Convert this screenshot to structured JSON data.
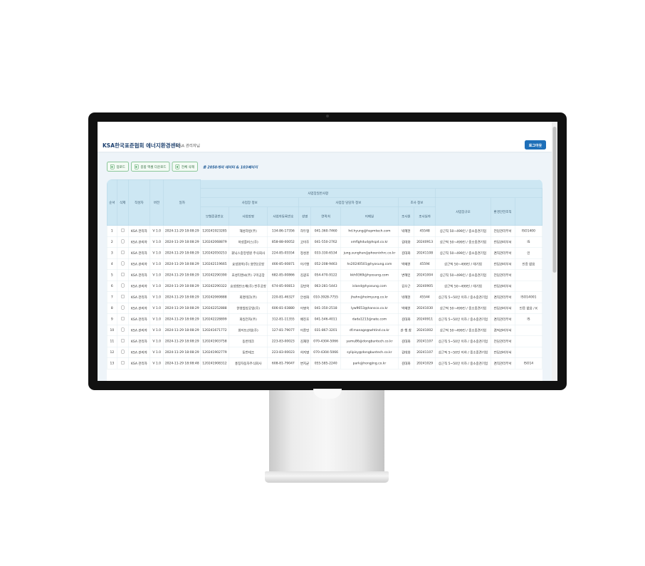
{
  "header": {
    "title": "KSA한국표준협회 에너지환경센터",
    "user": "KSA 관리자님",
    "logout_label": "로그아웃"
  },
  "toolbar": {
    "upload_label": "업로드",
    "excel_label": "종합 엑셀 다운로드",
    "delete_all_label": "전체 삭제",
    "total_text": "총 2050개의 데이터 & 103페이지"
  },
  "table": {
    "headers": {
      "no": "순서",
      "del": "삭제",
      "author": "작성자",
      "version": "버전",
      "date": "일자",
      "group_general": "사업장일반사항",
      "group_site": "사업장 정보",
      "group_contact": "사업장 담당자 정보",
      "group_survey": "조사 정보",
      "policy_no": "보험증권번호",
      "site_name": "사업장명",
      "biz_no": "사업자등록번호",
      "name": "성명",
      "phone": "연락처",
      "email": "이메일",
      "surveyor": "조사원",
      "survey_date": "조사일자",
      "scale": "사업장규모",
      "org": "환경안전조직"
    },
    "rows": [
      [
        "1",
        "KSA 관리자",
        "V 1.0",
        "2024-11-29 18:08:29",
        "120241923285",
        "해성하방(주)",
        "134-86-17356",
        "하두형",
        "041-360-7460",
        "hd.hyung@hspmtech.com",
        "박혜현",
        "45548",
        "상근직 50~499인 / 중소중견기업",
        "전담관리부서",
        "ISO1400"
      ],
      [
        "2",
        "KSA 관리자",
        "V 1.0",
        "2024-11-29 18:08:29",
        "120242068879",
        "하성플러스(주)",
        "858-88-00052",
        "고미주",
        "041-550-2762",
        "xmfighdud@hspd.co.kr",
        "김대화",
        "20240913",
        "상근직 50~499인 / 중소중견기업",
        "전담관리부서",
        "IS"
      ],
      [
        "3",
        "KSA 관리자",
        "V 1.0",
        "2024-11-29 18:08:29",
        "120242050253",
        "휘닉스중앙병원 주식회사",
        "224-85-05554",
        "정성훈",
        "033-330-6534",
        "jung.sunghun@phoenixhrc.co.kr",
        "김대화",
        "20241108",
        "상근직 50~499인 / 중소중견기업",
        "겸직관리부서",
        "인"
      ],
      [
        "4",
        "KSA 관리자",
        "V 1.0",
        "2024-11-29 18:08:29",
        "120242119665",
        "효성화학(주) 용연2공장",
        "466-85-00871",
        "이기형",
        "052-208-9463",
        "hs20240501@hyosung.com",
        "박혜현",
        "45594",
        "상근직 50~499인 / 대기업",
        "전담관리부서",
        "인증 없음"
      ],
      [
        "5",
        "KSA 관리자",
        "V 1.0",
        "2024-11-29 18:08:29",
        "120242290390",
        "효성티앤씨(주) 구미공장",
        "682-85-00866",
        "김광호",
        "054-470-9122",
        "kkh9369@hyosung.com",
        "변혜민",
        "20241004",
        "상근직 50~499인 / 중소중견기업",
        "전담관리부서",
        ""
      ],
      [
        "6",
        "KSA 관리자",
        "V 1.0",
        "2024-11-29 18:08:29",
        "120242290322",
        "효성첨단소재(주) 전주공장",
        "674-85-00813",
        "김민혁",
        "063-281-5443",
        "island@hyosung.com",
        "김우근",
        "20240905",
        "상근직 50~499인 / 대기업",
        "전담관리부서",
        ""
      ],
      [
        "7",
        "KSA 관리자",
        "V 1.0",
        "2024-11-29 18:08:29",
        "120242069888",
        "회명테크(주)",
        "220-81-46327",
        "안성화",
        "010-3928-7755",
        "jhahn@hoimyung.co.kr",
        "박혜현",
        "45544",
        "상근직 5~50인 이하 / 중소중견기업",
        "겸직관리부서",
        "ISO14001"
      ],
      [
        "8",
        "KSA 관리자",
        "V 1.0",
        "2024-11-29 18:08:29",
        "120242252888",
        "한영철강공업(주)",
        "606-81-03880",
        "이명옥",
        "041-350-2518",
        "lyw9653@hansco.co.kr",
        "박혜현",
        "20241030",
        "상근직 50~499인 / 중소중견기업",
        "전담관리부서",
        "인증 없음 / K"
      ],
      [
        "9",
        "KSA 관리자",
        "V 1.0",
        "2024-11-29 18:08:29",
        "120242228899",
        "화일전자(주)",
        "312-81-11355",
        "배진호",
        "041-546-4011",
        "dada1213@nate.com",
        "김대화",
        "20240911",
        "상근직 5~50인 이하 / 중소중견기업",
        "겸직관리부서",
        "IS"
      ],
      [
        "10",
        "KSA 관리자",
        "V 1.0",
        "2024-11-29 18:08:29",
        "120241671772",
        "화이트산업(주)",
        "127-81-79077",
        "이종민",
        "031-867-3201",
        "df.manage@whtind.co.kr",
        "관 행 참",
        "20241002",
        "상근직 50~499인 / 중소중견기업",
        "겸직관리부서",
        ""
      ],
      [
        "11",
        "KSA 관리자",
        "V 1.0",
        "2024-11-29 18:08:29",
        "120241903758",
        "동번테크",
        "223-83-00023",
        "김재현",
        "070-4304-5066",
        "yamu86@dongbuntech.co.kr",
        "김대화",
        "20241107",
        "상근직 5~50인 이하 / 중소중견기업",
        "전담관리부서",
        ""
      ],
      [
        "12",
        "KSA 관리자",
        "V 1.0",
        "2024-11-29 18:08:29",
        "120241902779",
        "동번테크",
        "223-83-00023",
        "허지명",
        "070-4304-5066",
        "sylipisy@dongbuntech.co.kr",
        "김대화",
        "20241107",
        "상근직 5~50인 이하 / 중소중견기업",
        "전담관리부서",
        ""
      ],
      [
        "13",
        "KSA 관리자",
        "V 1.0",
        "2024-11-29 18:08:48",
        "120241908312",
        "홍징자동차주식회사",
        "608-81-79047",
        "변지균",
        "055-585-2240",
        "park@hongjing.co.kr",
        "김대화",
        "20241029",
        "상근직 5~50인 이하 / 중소중견기업",
        "겸직관리부서",
        "ISO14"
      ]
    ]
  },
  "colors": {
    "accent": "#1e6fb8",
    "header_bg": "#cde7f3",
    "button_green": "#3f9b55"
  }
}
